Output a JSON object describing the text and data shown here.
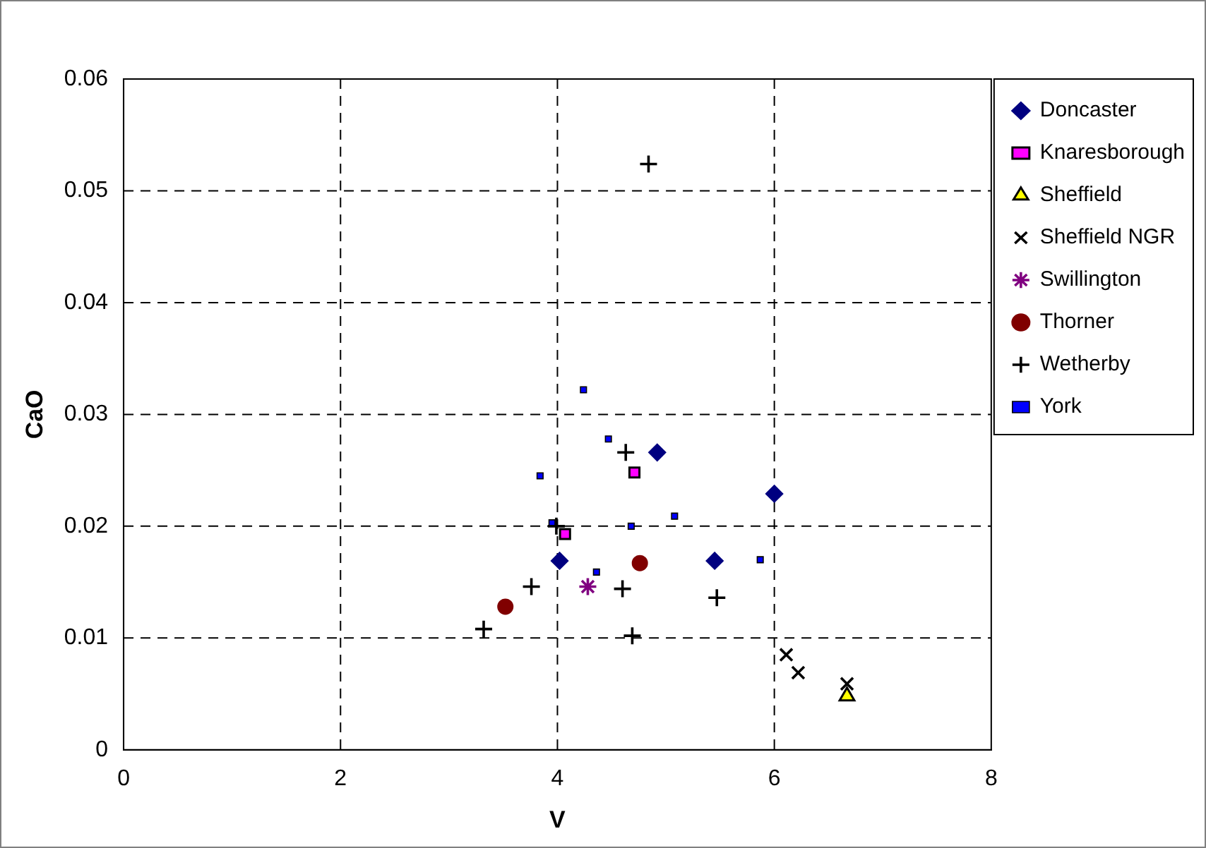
{
  "chart_data": {
    "type": "scatter",
    "xlabel": "V",
    "ylabel": "CaO",
    "xlim": [
      0,
      8
    ],
    "xticks": [
      0,
      2,
      4,
      6,
      8
    ],
    "ylim": [
      0,
      0.06
    ],
    "yticks": [
      0,
      0.01,
      0.02,
      0.03,
      0.04,
      0.05,
      0.06
    ],
    "grid": true,
    "legend": "right",
    "series": [
      {
        "name": "Doncaster",
        "color": "#000080",
        "marker": "diamond",
        "x": [
          4.02,
          4.92,
          5.45,
          6.0
        ],
        "values": [
          0.0169,
          0.0266,
          0.0169,
          0.0229
        ]
      },
      {
        "name": "Knaresborough",
        "color": "#ff00ff",
        "marker": "square",
        "x": [
          4.07,
          4.71
        ],
        "values": [
          0.0193,
          0.0248
        ]
      },
      {
        "name": "Sheffield",
        "color": "#ffff00",
        "marker": "triangle",
        "x": [
          6.67
        ],
        "values": [
          0.0048
        ]
      },
      {
        "name": "Sheffield NGR",
        "color": "#000000",
        "marker": "x",
        "x": [
          6.11,
          6.22,
          6.67
        ],
        "values": [
          0.0085,
          0.0069,
          0.0059
        ]
      },
      {
        "name": "Swillington",
        "color": "#800080",
        "x": [
          4.28
        ],
        "values": [
          0.0146
        ]
      },
      {
        "name": "Thorner",
        "color": "#800000",
        "marker": "circle",
        "x": [
          3.52,
          4.76
        ],
        "values": [
          0.0128,
          0.0167
        ]
      },
      {
        "name": "Wetherby",
        "color": "#000000",
        "marker": "cross",
        "x": [
          4.84,
          4.63,
          3.99,
          3.76,
          4.6,
          5.47,
          3.32,
          4.69
        ],
        "values": [
          0.0524,
          0.0266,
          0.02,
          0.0146,
          0.0144,
          0.0136,
          0.0108,
          0.0102
        ]
      },
      {
        "name": "York",
        "color": "#0000ff",
        "marker": "square",
        "x": [
          4.24,
          4.47,
          3.84,
          5.08,
          3.95,
          4.68,
          5.87,
          4.36
        ],
        "values": [
          0.0322,
          0.0278,
          0.0245,
          0.0209,
          0.0203,
          0.02,
          0.017,
          0.0159
        ]
      }
    ]
  }
}
